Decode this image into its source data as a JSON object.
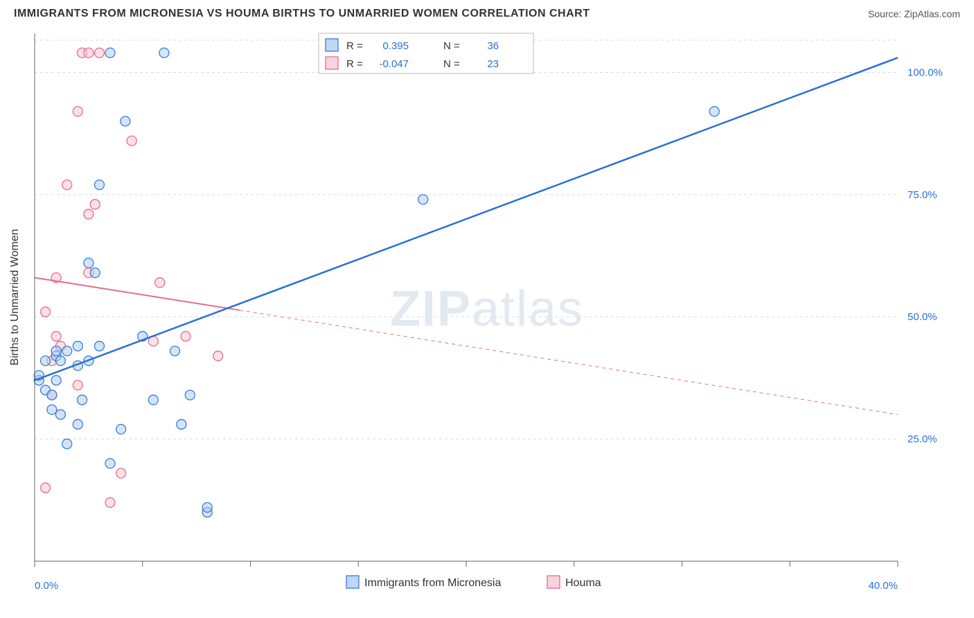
{
  "title": "IMMIGRANTS FROM MICRONESIA VS HOUMA BIRTHS TO UNMARRIED WOMEN CORRELATION CHART",
  "source_label": "Source: ZipAtlas.com",
  "watermark": {
    "part1": "ZIP",
    "part2": "atlas"
  },
  "y_axis_label": "Births to Unmarried Women",
  "chart": {
    "type": "scatter",
    "xlim": [
      0,
      40
    ],
    "ylim": [
      0,
      108
    ],
    "x_ticks": [
      0,
      5,
      10,
      15,
      20,
      25,
      30,
      35,
      40
    ],
    "x_tick_labels": [
      "0.0%",
      "",
      "",
      "",
      "",
      "",
      "",
      "",
      "40.0%"
    ],
    "y_ticks": [
      25,
      50,
      75,
      100
    ],
    "y_tick_labels": [
      "25.0%",
      "50.0%",
      "75.0%",
      "100.0%"
    ],
    "background_color": "#ffffff",
    "grid_color": "#d9d9d9",
    "marker_radius": 7,
    "marker_stroke_width": 1.3,
    "series": [
      {
        "name": "Immigrants from Micronesia",
        "fill": "#aecdf2",
        "stroke": "#3a7bd5",
        "fill_opacity": 0.55,
        "r_value": "0.395",
        "n_value": "36",
        "trend": {
          "x1": 0,
          "y1": 37,
          "x2": 40,
          "y2": 103,
          "stroke": "#2a6fd6",
          "width": 2.5,
          "dash": ""
        },
        "trend_dash": {
          "x1": 9.5,
          "y1": 51.5,
          "x2": 40,
          "y2": 103
        },
        "points": [
          [
            0.2,
            37
          ],
          [
            0.2,
            38
          ],
          [
            0.5,
            35
          ],
          [
            0.5,
            41
          ],
          [
            0.8,
            31
          ],
          [
            0.8,
            34
          ],
          [
            1.0,
            37
          ],
          [
            1.0,
            42
          ],
          [
            1.0,
            43
          ],
          [
            1.2,
            41
          ],
          [
            1.2,
            30
          ],
          [
            1.5,
            24
          ],
          [
            1.5,
            43
          ],
          [
            2.0,
            40
          ],
          [
            2.0,
            44
          ],
          [
            2.0,
            28
          ],
          [
            2.2,
            33
          ],
          [
            2.5,
            41
          ],
          [
            2.5,
            61
          ],
          [
            2.8,
            59
          ],
          [
            3.0,
            77
          ],
          [
            3.0,
            44
          ],
          [
            3.5,
            104
          ],
          [
            3.5,
            20
          ],
          [
            4.0,
            27
          ],
          [
            4.2,
            90
          ],
          [
            5.0,
            46
          ],
          [
            5.5,
            33
          ],
          [
            6.0,
            104
          ],
          [
            6.5,
            43
          ],
          [
            6.8,
            28
          ],
          [
            7.2,
            34
          ],
          [
            8.0,
            10
          ],
          [
            8.0,
            11
          ],
          [
            18.0,
            74
          ],
          [
            31.5,
            92
          ]
        ]
      },
      {
        "name": "Houma",
        "fill": "#f6c8d2",
        "stroke": "#e96a8d",
        "fill_opacity": 0.55,
        "r_value": "-0.047",
        "n_value": "23",
        "trend": {
          "x1": 0,
          "y1": 58,
          "x2": 40,
          "y2": 30,
          "stroke": "#e96a8d",
          "width": 2,
          "dash": ""
        },
        "trend_solid_end_x": 9.5,
        "points": [
          [
            0.5,
            15
          ],
          [
            0.5,
            51
          ],
          [
            0.8,
            41
          ],
          [
            0.8,
            34
          ],
          [
            1.0,
            46
          ],
          [
            1.0,
            58
          ],
          [
            1.2,
            44
          ],
          [
            1.5,
            77
          ],
          [
            2.0,
            92
          ],
          [
            2.0,
            36
          ],
          [
            2.2,
            104
          ],
          [
            2.5,
            59
          ],
          [
            2.5,
            104
          ],
          [
            2.5,
            71
          ],
          [
            2.8,
            73
          ],
          [
            3.0,
            104
          ],
          [
            3.5,
            12
          ],
          [
            4.0,
            18
          ],
          [
            4.5,
            86
          ],
          [
            5.5,
            45
          ],
          [
            5.8,
            57
          ],
          [
            7.0,
            46
          ],
          [
            8.5,
            42
          ]
        ]
      }
    ]
  },
  "legend_box": {
    "r_label": "R =",
    "n_label": "N ="
  },
  "bottom_legend": {
    "series1": "Immigrants from Micronesia",
    "series2": "Houma"
  }
}
